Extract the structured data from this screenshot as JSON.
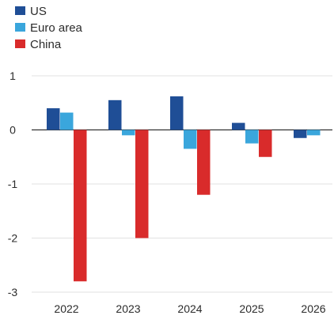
{
  "chart_data": {
    "type": "bar",
    "categories": [
      "2022",
      "2023",
      "2024",
      "2025",
      "2026"
    ],
    "series": [
      {
        "name": "US",
        "color": "#1f4e96",
        "values": [
          0.4,
          0.55,
          0.62,
          0.13,
          -0.15
        ]
      },
      {
        "name": "Euro area",
        "color": "#3aa6dc",
        "values": [
          0.32,
          -0.1,
          -0.35,
          -0.25,
          -0.1
        ]
      },
      {
        "name": "China",
        "color": "#d92b2b",
        "values": [
          -2.8,
          -2.0,
          -1.2,
          -0.5,
          null
        ]
      }
    ],
    "ylim": [
      -3,
      1
    ],
    "yticks": [
      1,
      0,
      -1,
      -2,
      -3
    ],
    "ytick_labels": [
      "1",
      "0",
      "-1",
      "-2",
      "-3"
    ],
    "grid": true,
    "legend_position": "top-left",
    "title": "",
    "xlabel": "",
    "ylabel": ""
  }
}
